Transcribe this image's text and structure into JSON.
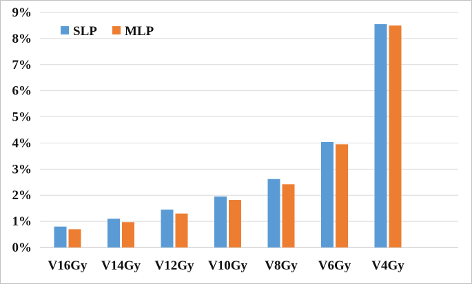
{
  "chart_data": {
    "type": "bar",
    "categories": [
      "V16Gy",
      "V14Gy",
      "V12Gy",
      "V10Gy",
      "V8Gy",
      "V6Gy",
      "V4Gy"
    ],
    "series": [
      {
        "name": "SLP",
        "values": [
          0.8,
          1.1,
          1.45,
          1.95,
          2.62,
          4.04,
          8.55
        ]
      },
      {
        "name": "MLP",
        "values": [
          0.7,
          0.97,
          1.3,
          1.82,
          2.42,
          3.95,
          8.5
        ]
      }
    ],
    "yticks": [
      "0%",
      "1%",
      "2%",
      "3%",
      "4%",
      "5%",
      "6%",
      "7%",
      "8%",
      "9%"
    ],
    "ylim": [
      0,
      9
    ],
    "grid": true,
    "legend_position": "top-left",
    "colors": {
      "SLP": "#5b9bd5",
      "MLP": "#ed7d31",
      "grid": "#d9d9d9",
      "axis": "#bfbfbf"
    }
  }
}
